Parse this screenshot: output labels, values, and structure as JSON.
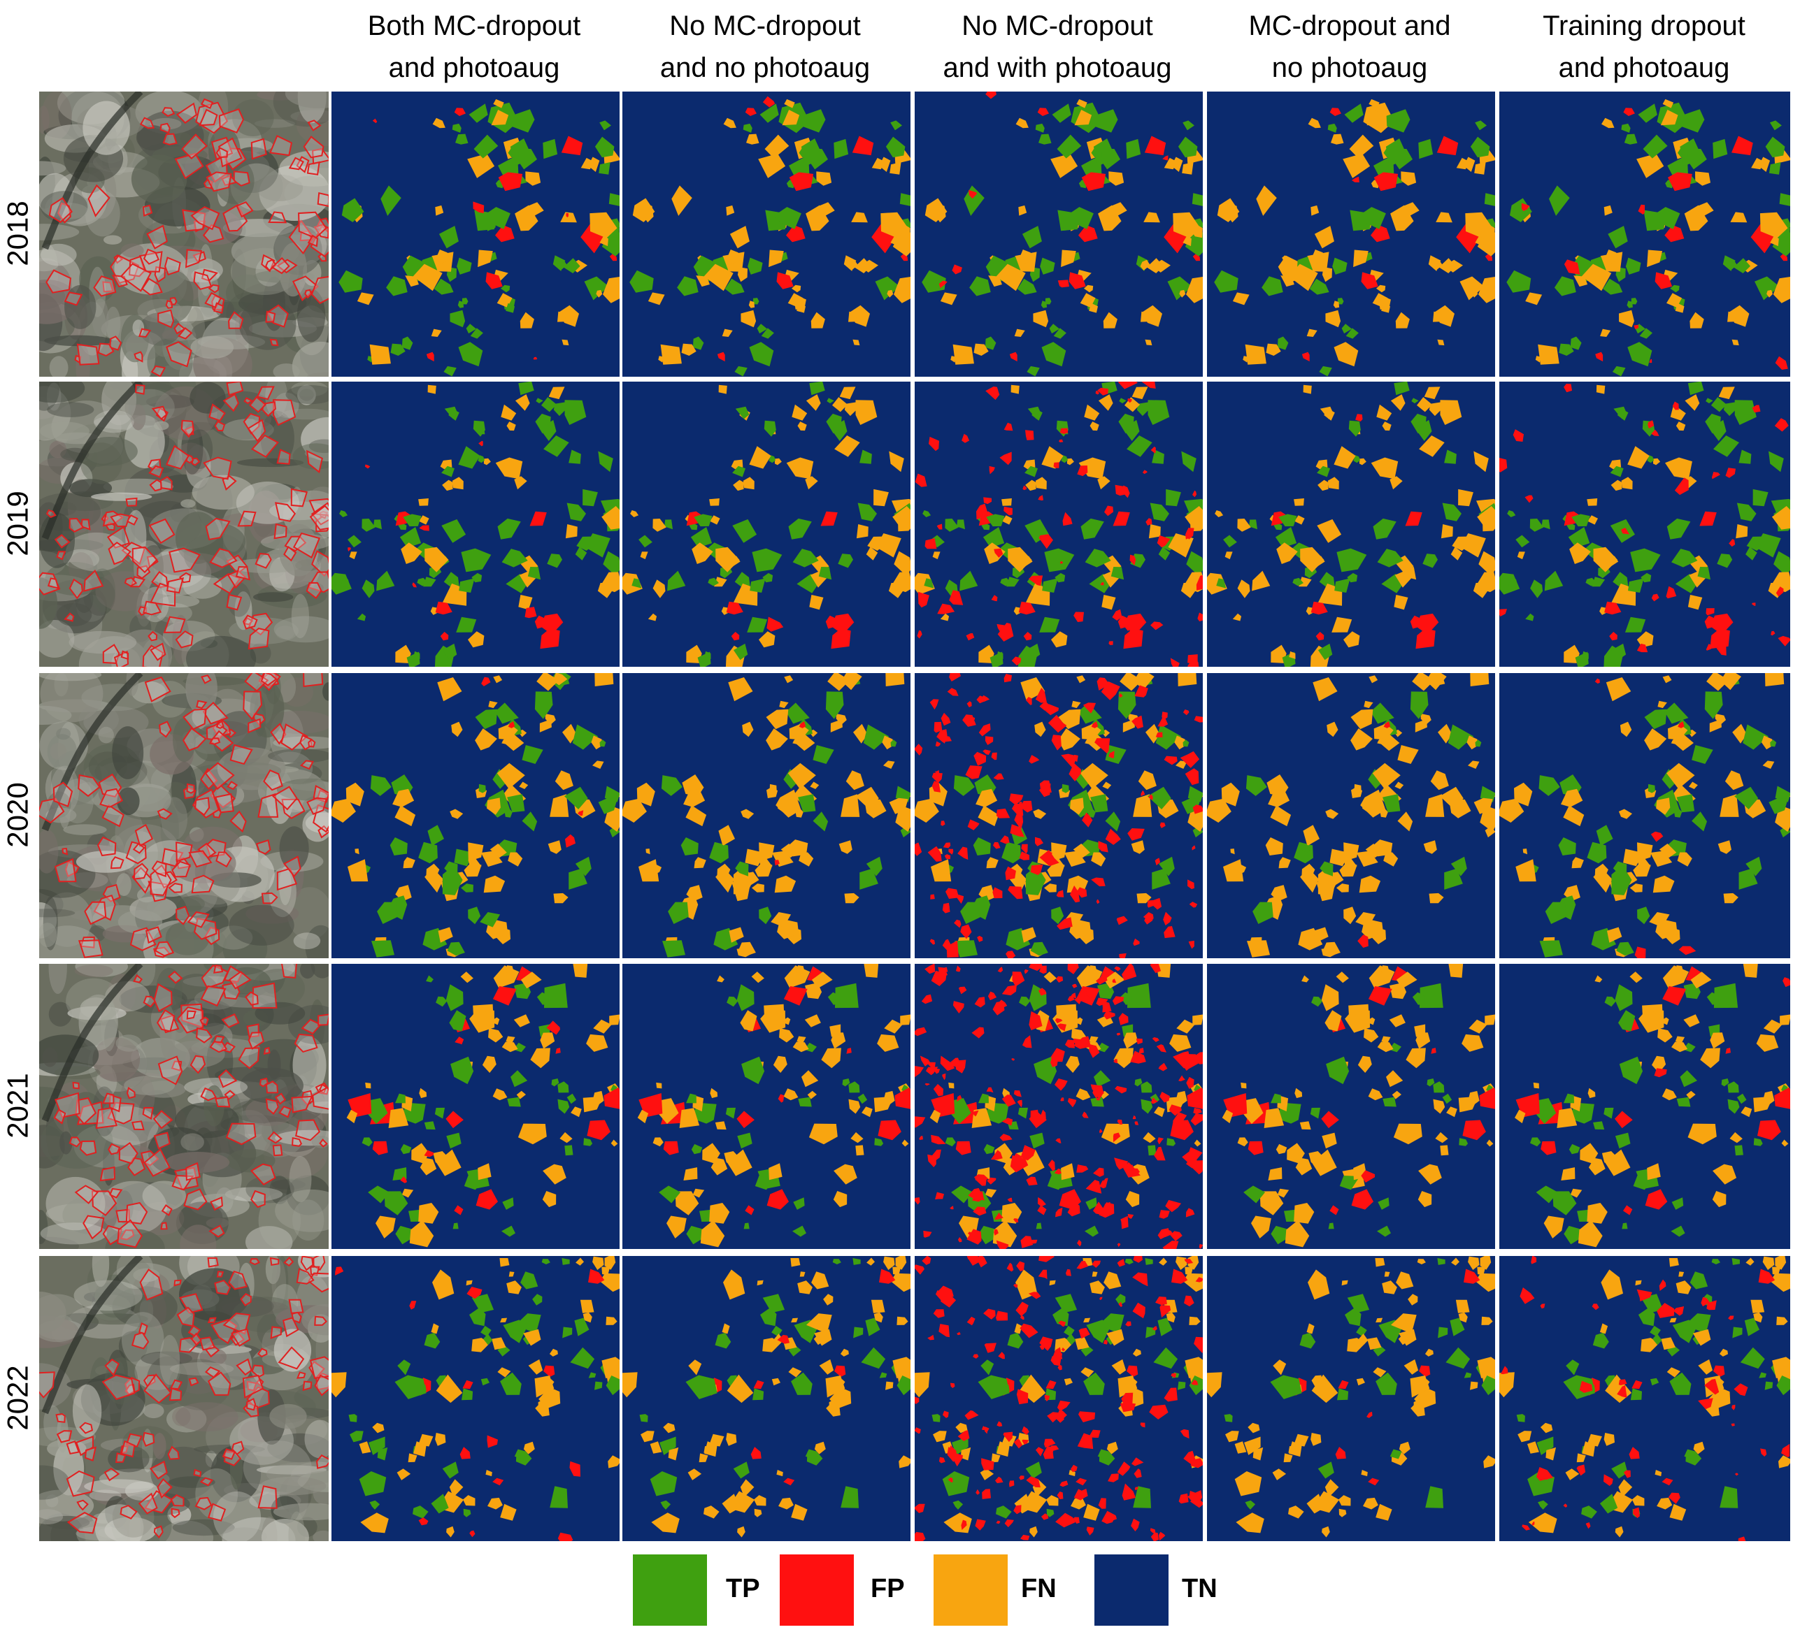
{
  "columns": [
    {
      "line1": "",
      "line2": ""
    },
    {
      "line1": "Both MC-dropout",
      "line2": "and photoaug"
    },
    {
      "line1": "No MC-dropout",
      "line2": "and no photoaug"
    },
    {
      "line1": "No MC-dropout",
      "line2": "and with photoaug"
    },
    {
      "line1": "MC-dropout and",
      "line2": "no photoaug"
    },
    {
      "line1": "Training dropout",
      "line2": "and photoaug"
    }
  ],
  "rows": [
    {
      "year": "2018"
    },
    {
      "year": "2019"
    },
    {
      "year": "2020"
    },
    {
      "year": "2021"
    },
    {
      "year": "2022"
    }
  ],
  "legend": [
    {
      "label": "TP",
      "color": "#3fa010"
    },
    {
      "label": "FP",
      "color": "#ff1010"
    },
    {
      "label": "FN",
      "color": "#f8a510"
    },
    {
      "label": "TN",
      "color": "#0b2a6e"
    }
  ],
  "colors": {
    "tp": "#3fa010",
    "fp": "#ff1010",
    "fn": "#f8a510",
    "tn": "#0b2a6e",
    "field_outline": "#e02020",
    "satellite_base": "#6b6e60"
  }
}
